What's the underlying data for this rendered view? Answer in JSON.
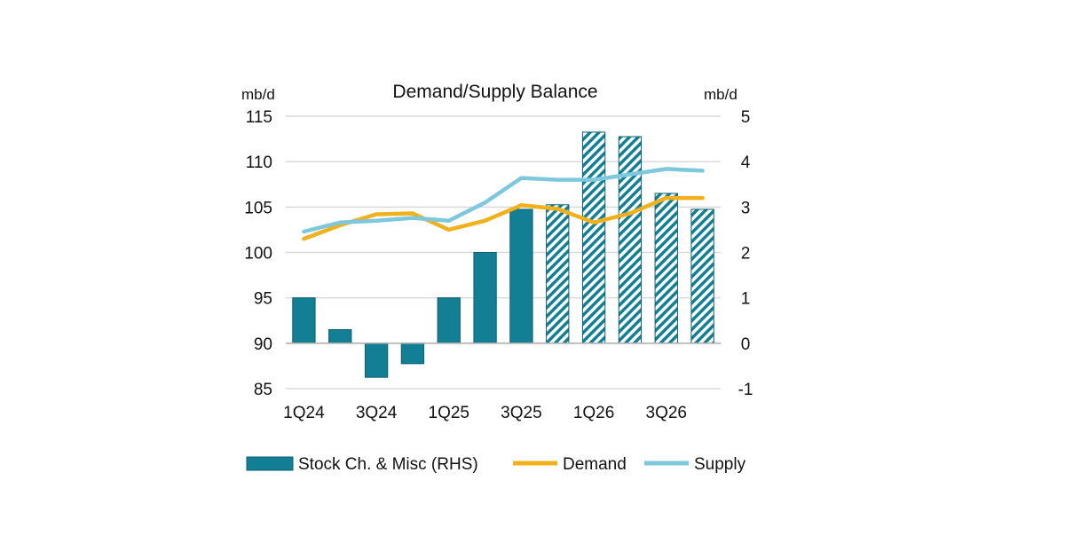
{
  "chart_data": {
    "type": "bar",
    "title": "Demand/Supply Balance",
    "left_unit": "mb/d",
    "right_unit": "mb/d",
    "categories": [
      "1Q24",
      "2Q24",
      "3Q24",
      "4Q24",
      "1Q25",
      "2Q25",
      "3Q25",
      "4Q25",
      "1Q26",
      "2Q26",
      "3Q26",
      "4Q26"
    ],
    "x_tick_labels": [
      "1Q24",
      "3Q24",
      "1Q25",
      "3Q25",
      "1Q26",
      "3Q26"
    ],
    "left_axis": {
      "min": 85,
      "max": 115,
      "ticks": [
        85,
        90,
        95,
        100,
        105,
        110,
        115
      ]
    },
    "right_axis": {
      "min": -1,
      "max": 5,
      "ticks": [
        -1,
        0,
        1,
        2,
        3,
        4,
        5
      ]
    },
    "grid": true,
    "legend_position": "bottom",
    "series": [
      {
        "name": "Stock Ch. & Misc (RHS)",
        "type": "bar",
        "axis": "right",
        "color": "#127f94",
        "values": [
          1.0,
          0.3,
          -0.75,
          -0.45,
          1.0,
          2.0,
          2.95,
          3.05,
          4.65,
          4.55,
          3.3,
          2.95
        ],
        "hatched": [
          false,
          false,
          false,
          false,
          false,
          false,
          false,
          true,
          true,
          true,
          true,
          true
        ]
      },
      {
        "name": "Demand",
        "type": "line",
        "axis": "left",
        "color": "#f0b11c",
        "values": [
          101.5,
          103.0,
          104.2,
          104.3,
          102.5,
          103.5,
          105.2,
          104.8,
          103.3,
          104.3,
          106.0,
          106.0
        ]
      },
      {
        "name": "Supply",
        "type": "line",
        "axis": "left",
        "color": "#7ec8dd",
        "values": [
          102.3,
          103.3,
          103.5,
          103.8,
          103.5,
          105.5,
          108.2,
          108.0,
          108.0,
          108.6,
          109.2,
          109.0
        ]
      }
    ]
  }
}
